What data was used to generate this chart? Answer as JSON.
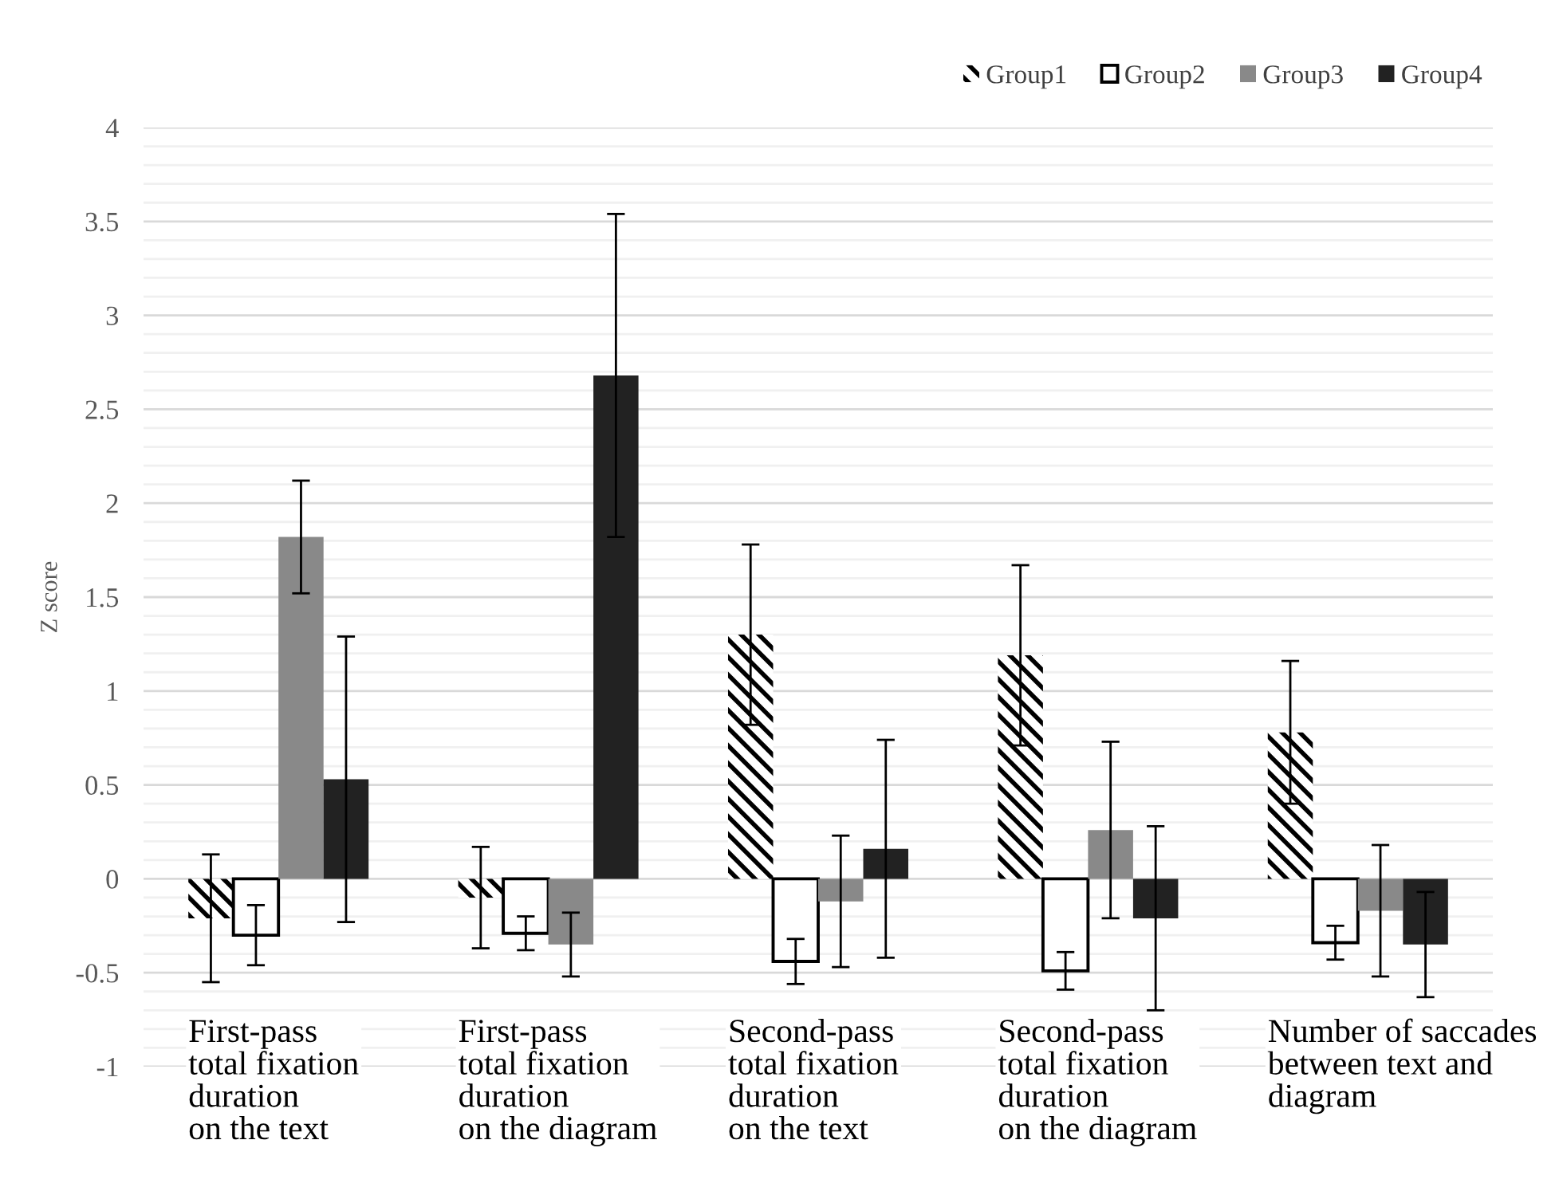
{
  "chart_data": {
    "type": "bar",
    "categories": [
      "First-pass\ntotal fixation\nduration\non the text",
      "First-pass\ntotal fixation\nduration\non the diagram",
      "Second-pass\ntotal fixation\nduration\non the text",
      "Second-pass\ntotal fixation\nduration\non the diagram",
      "Number of saccades\nbetween text and\ndiagram"
    ],
    "ylabel": "Z score",
    "ylim": [
      -1,
      4
    ],
    "yticks": [
      -1,
      {
        "value": -0.9,
        "label": null
      },
      {
        "value": -0.8,
        "label": null
      },
      {
        "value": -0.7,
        "label": null
      },
      {
        "value": -0.6,
        "label": null
      },
      -0.5,
      {
        "value": -0.4,
        "label": null
      },
      {
        "value": -0.3,
        "label": null
      },
      {
        "value": -0.2,
        "label": null
      },
      {
        "value": -0.1,
        "label": null
      },
      0,
      {
        "value": 0.1,
        "label": null
      },
      {
        "value": 0.2,
        "label": null
      },
      {
        "value": 0.3,
        "label": null
      },
      {
        "value": 0.4,
        "label": null
      },
      0.5,
      {
        "value": 0.6,
        "label": null
      },
      {
        "value": 0.7,
        "label": null
      },
      {
        "value": 0.8,
        "label": null
      },
      {
        "value": 0.9,
        "label": null
      },
      1,
      {
        "value": 1.1,
        "label": null
      },
      {
        "value": 1.2,
        "label": null
      },
      {
        "value": 1.3,
        "label": null
      },
      {
        "value": 1.4,
        "label": null
      },
      1.5,
      {
        "value": 1.6,
        "label": null
      },
      {
        "value": 1.7,
        "label": null
      },
      {
        "value": 1.8,
        "label": null
      },
      {
        "value": 1.9,
        "label": null
      },
      2,
      {
        "value": 2.1,
        "label": null
      },
      {
        "value": 2.2,
        "label": null
      },
      {
        "value": 2.3,
        "label": null
      },
      {
        "value": 2.4,
        "label": null
      },
      2.5,
      {
        "value": 2.6,
        "label": null
      },
      {
        "value": 2.7,
        "label": null
      },
      {
        "value": 2.8,
        "label": null
      },
      {
        "value": 2.9,
        "label": null
      },
      3,
      {
        "value": 3.1,
        "label": null
      },
      {
        "value": 3.2,
        "label": null
      },
      {
        "value": 3.3,
        "label": null
      },
      {
        "value": 3.4,
        "label": null
      },
      3.5,
      {
        "value": 3.6,
        "label": null
      },
      {
        "value": 3.7,
        "label": null
      },
      {
        "value": 3.8,
        "label": null
      },
      {
        "value": 3.9,
        "label": null
      },
      4
    ],
    "grid": "y",
    "legend": "top right",
    "series": [
      {
        "name": "Group1",
        "color": "#000000",
        "values": [
          -0.21,
          -0.1,
          1.3,
          1.19,
          0.78
        ],
        "errors": [
          0.34,
          0.27,
          0.48,
          0.48,
          0.38
        ]
      },
      {
        "name": "Group2",
        "color": "#ffffff",
        "values": [
          -0.3,
          -0.29,
          -0.44,
          -0.49,
          -0.34
        ],
        "errors": [
          0.16,
          0.09,
          0.12,
          0.1,
          0.09
        ]
      },
      {
        "name": "Group3",
        "color": "#898989",
        "values": [
          1.82,
          -0.35,
          -0.12,
          0.26,
          -0.17
        ],
        "errors": [
          0.3,
          0.17,
          0.35,
          0.47,
          0.35
        ]
      },
      {
        "name": "Group4",
        "color": "#222222",
        "values": [
          0.53,
          2.68,
          0.16,
          -0.21,
          -0.35
        ],
        "errors": [
          0.76,
          0.86,
          0.58,
          0.49,
          0.28
        ]
      }
    ]
  }
}
